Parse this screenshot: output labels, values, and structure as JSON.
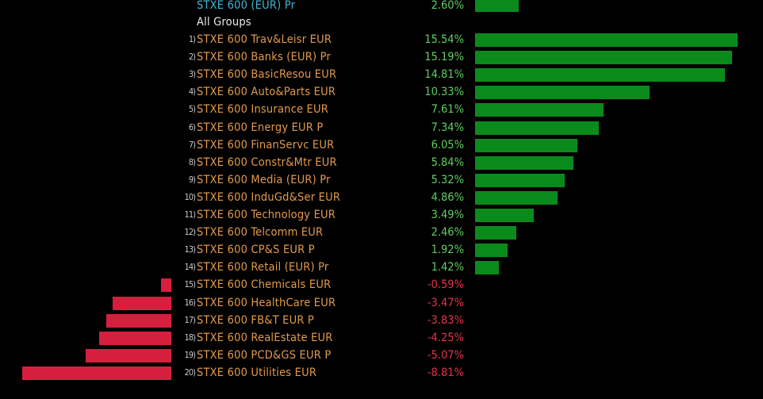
{
  "colors": {
    "positive_bar": "#0b8a1c",
    "negative_bar": "#d61f3f",
    "positive_text": "#5fcf5f",
    "negative_text": "#e5334a",
    "name_text": "#e29a4a",
    "header_text": "#3fb7d6",
    "background": "#000000"
  },
  "header": {
    "name": "STXE 600 (EUR) Pr",
    "value": 2.6,
    "value_label": "2.60%"
  },
  "group_label": "All Groups",
  "chart_data": {
    "type": "bar",
    "orientation": "horizontal",
    "title": "All Groups",
    "benchmark": {
      "name": "STXE 600 (EUR) Pr",
      "value": 2.6
    },
    "unit": "%",
    "categories": [
      "STXE 600 Trav&Leisr EUR",
      "STXE 600 Banks (EUR) Pr",
      "STXE 600 BasicResou EUR",
      "STXE 600 Auto&Parts EUR",
      "STXE 600 Insurance EUR",
      "STXE 600 Energy EUR P",
      "STXE 600 FinanServc EUR",
      "STXE 600 Constr&Mtr EUR",
      "STXE 600 Media (EUR) Pr",
      "STXE 600 InduGd&Ser EUR",
      "STXE 600 Technology EUR",
      "STXE 600 Telcomm EUR",
      "STXE 600 CP&S EUR P",
      "STXE 600 Retail (EUR) Pr",
      "STXE 600 Chemicals EUR",
      "STXE 600 HealthCare EUR",
      "STXE 600 FB&T EUR P",
      "STXE 600 RealEstate EUR",
      "STXE 600 PCD&GS EUR P",
      "STXE 600 Utilities EUR"
    ],
    "values": [
      15.54,
      15.19,
      14.81,
      10.33,
      7.61,
      7.34,
      6.05,
      5.84,
      5.32,
      4.86,
      3.49,
      2.46,
      1.92,
      1.42,
      -0.59,
      -3.47,
      -3.83,
      -4.25,
      -5.07,
      -8.81
    ],
    "labels": [
      "15.54%",
      "15.19%",
      "14.81%",
      "10.33%",
      "7.61%",
      "7.34%",
      "6.05%",
      "5.84%",
      "5.32%",
      "4.86%",
      "3.49%",
      "2.46%",
      "1.92%",
      "1.42%",
      "-0.59%",
      "-3.47%",
      "-3.83%",
      "-4.25%",
      "-5.07%",
      "-8.81%"
    ],
    "indices": [
      "1)",
      "2)",
      "3)",
      "4)",
      "5)",
      "6)",
      "7)",
      "8)",
      "9)",
      "10)",
      "11)",
      "12)",
      "13)",
      "14)",
      "15)",
      "16)",
      "17)",
      "18)",
      "19)",
      "20)"
    ],
    "xlim": [
      -8.81,
      15.54
    ],
    "legend": "none",
    "grid": false
  }
}
